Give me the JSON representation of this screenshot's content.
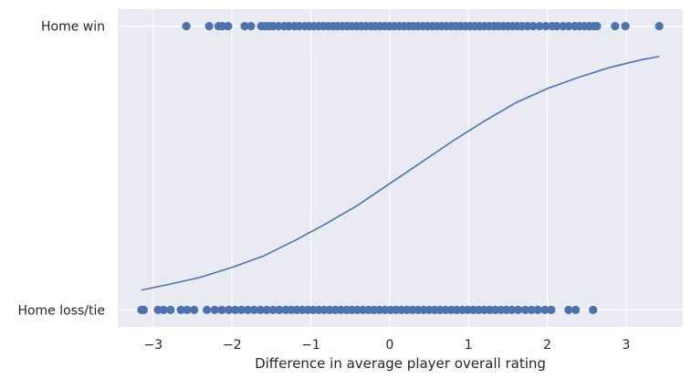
{
  "chart_data": {
    "type": "scatter",
    "xlabel": "Difference in average player overall rating",
    "ylabel": "",
    "xlim": [
      -3.45,
      3.72
    ],
    "ylim": [
      -0.06,
      1.06
    ],
    "x_ticks": [
      -3,
      -2,
      -1,
      0,
      1,
      2,
      3
    ],
    "x_tick_labels": [
      "−3",
      "−2",
      "−1",
      "0",
      "1",
      "2",
      "3"
    ],
    "y_ticks": [
      0,
      1
    ],
    "y_tick_labels": [
      "Home loss/tie",
      "Home win"
    ],
    "grid": true,
    "background_color": "#eaeaf2",
    "series_color": "#4c72b0",
    "series": [
      {
        "type": "scatter",
        "y": 1,
        "x": [
          -2.58,
          -2.29,
          -2.17,
          -2.12,
          -2.05,
          -1.84,
          -1.76,
          -1.63,
          -1.58,
          -1.53,
          -1.48,
          -1.41,
          -1.34,
          -1.28,
          -1.21,
          -1.15,
          -1.08,
          -1.02,
          -0.96,
          -0.9,
          -0.84,
          -0.78,
          -0.72,
          -0.66,
          -0.6,
          -0.54,
          -0.48,
          -0.42,
          -0.36,
          -0.3,
          -0.24,
          -0.18,
          -0.12,
          -0.06,
          0.0,
          0.06,
          0.12,
          0.18,
          0.24,
          0.3,
          0.36,
          0.42,
          0.48,
          0.54,
          0.6,
          0.66,
          0.72,
          0.78,
          0.84,
          0.9,
          0.96,
          1.02,
          1.08,
          1.14,
          1.2,
          1.26,
          1.32,
          1.38,
          1.44,
          1.5,
          1.56,
          1.62,
          1.68,
          1.75,
          1.82,
          1.9,
          1.98,
          2.06,
          2.12,
          2.2,
          2.27,
          2.35,
          2.41,
          2.47,
          2.53,
          2.59,
          2.63,
          2.86,
          2.99,
          3.42
        ]
      },
      {
        "type": "scatter",
        "y": 0,
        "x": [
          -3.15,
          -3.12,
          -2.94,
          -2.87,
          -2.78,
          -2.65,
          -2.57,
          -2.48,
          -2.32,
          -2.22,
          -2.13,
          -2.04,
          -1.96,
          -1.88,
          -1.8,
          -1.72,
          -1.64,
          -1.56,
          -1.48,
          -1.4,
          -1.32,
          -1.25,
          -1.18,
          -1.11,
          -1.04,
          -0.97,
          -0.9,
          -0.83,
          -0.76,
          -0.69,
          -0.62,
          -0.55,
          -0.48,
          -0.41,
          -0.34,
          -0.27,
          -0.2,
          -0.13,
          -0.06,
          0.01,
          0.08,
          0.15,
          0.22,
          0.29,
          0.36,
          0.43,
          0.5,
          0.57,
          0.64,
          0.71,
          0.78,
          0.85,
          0.92,
          0.99,
          1.06,
          1.13,
          1.2,
          1.27,
          1.34,
          1.41,
          1.48,
          1.55,
          1.63,
          1.72,
          1.8,
          1.88,
          1.97,
          2.05,
          2.27,
          2.36,
          2.58
        ]
      },
      {
        "type": "line",
        "x": [
          -3.15,
          -2.8,
          -2.4,
          -2.0,
          -1.6,
          -1.2,
          -0.8,
          -0.4,
          0.0,
          0.4,
          0.8,
          1.2,
          1.6,
          2.0,
          2.4,
          2.8,
          3.2,
          3.42
        ],
        "y": [
          0.07,
          0.09,
          0.115,
          0.15,
          0.19,
          0.245,
          0.305,
          0.37,
          0.445,
          0.52,
          0.595,
          0.665,
          0.73,
          0.78,
          0.82,
          0.855,
          0.882,
          0.893
        ]
      }
    ]
  }
}
